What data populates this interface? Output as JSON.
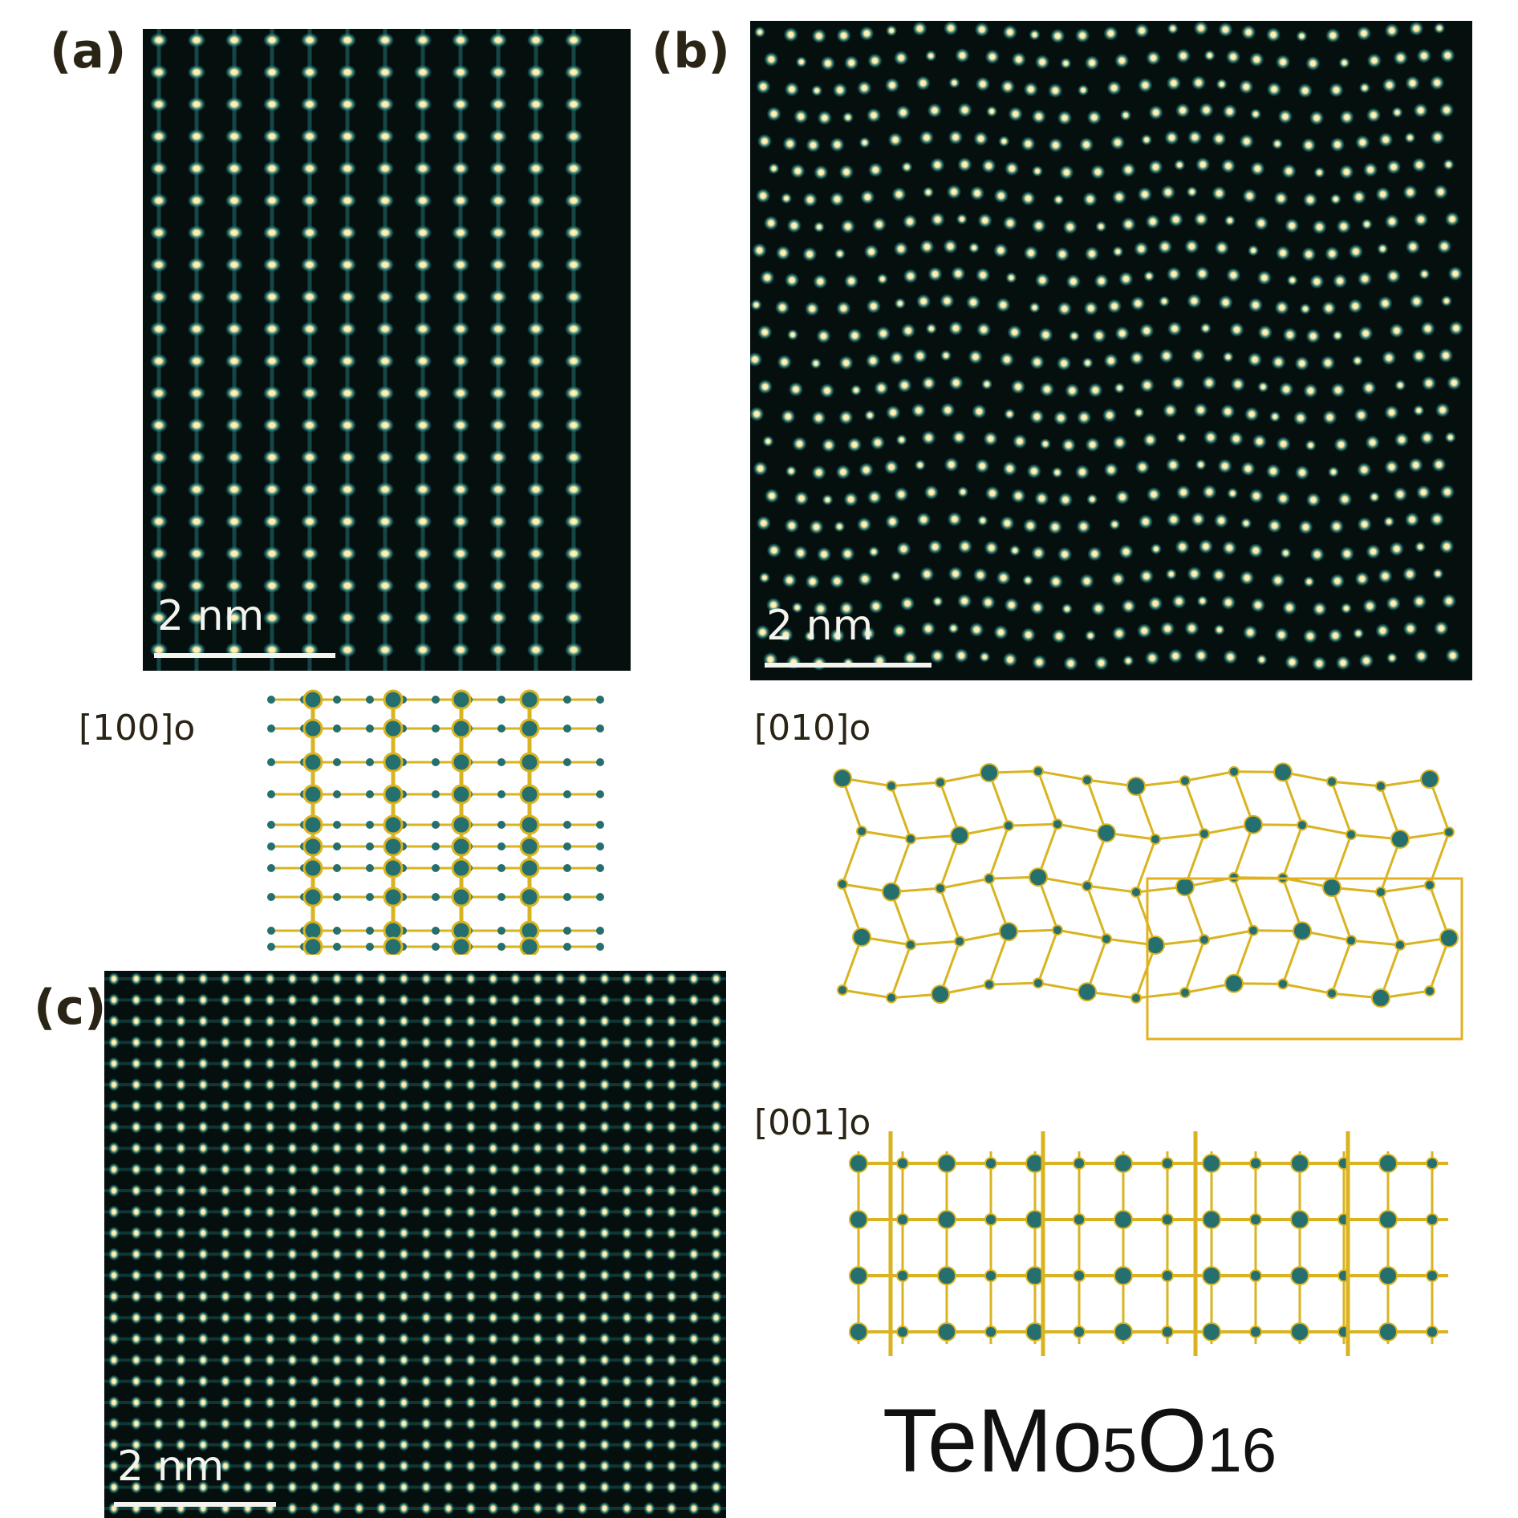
{
  "panels": {
    "a": {
      "label": "(a)",
      "scale_text": "2 nm"
    },
    "b": {
      "label": "(b)",
      "scale_text": "2 nm"
    },
    "c": {
      "label": "(c)",
      "scale_text": "2 nm"
    }
  },
  "zone_axes": {
    "z100": "[100]o",
    "z010": "[010]o",
    "z001": "[001]o"
  },
  "formula": {
    "base": "TeMo",
    "sub1": "5",
    "mid": "O",
    "sub2": "16"
  },
  "colors": {
    "background": "#05100e",
    "atom_bright": "#ffe9a0",
    "atom_core": "#fff8d8",
    "atom_teal": "#2a8a8a",
    "model_bond": "#d9b320",
    "model_atom": "#256f6f",
    "unit_cell": "#e2b21e"
  }
}
